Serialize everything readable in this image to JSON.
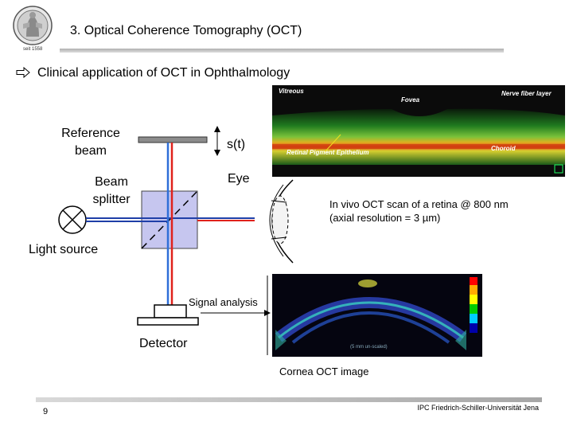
{
  "header": {
    "title": "3. Optical Coherence Tomography (OCT)",
    "logo_year": "seit 1558"
  },
  "subtitle": "Clinical application of OCT in Ophthalmology",
  "diagram": {
    "reference_beam": "Reference beam",
    "mirror_shift": "s(t)",
    "beam_splitter": "Beam splitter",
    "eye": "Eye",
    "light_source": "Light source",
    "signal_analysis": "Signal analysis",
    "detector": "Detector"
  },
  "retina_scan": {
    "labels": {
      "vitreous": "Vitreous",
      "fovea": "Fovea",
      "nerve_fiber_layer": "Nerve fiber layer",
      "rpe": "Retinal Pigment Epithelium",
      "choroid": "Choroid"
    },
    "caption_line1": "In vivo OCT scan of a retina @ 800 nm",
    "caption_line2": "(axial resolution = 3 µm)"
  },
  "cornea_scan": {
    "scale_label": "(5 mm un-scaled)",
    "caption": "Cornea OCT image"
  },
  "footer": {
    "page_number": "9",
    "institution": "IPC Friedrich-Schiller-Universität Jena"
  },
  "colors": {
    "beam_blue": "#2f6fd8",
    "beam_red": "#e0221c",
    "splitter_fill": "#c6c6ef"
  }
}
